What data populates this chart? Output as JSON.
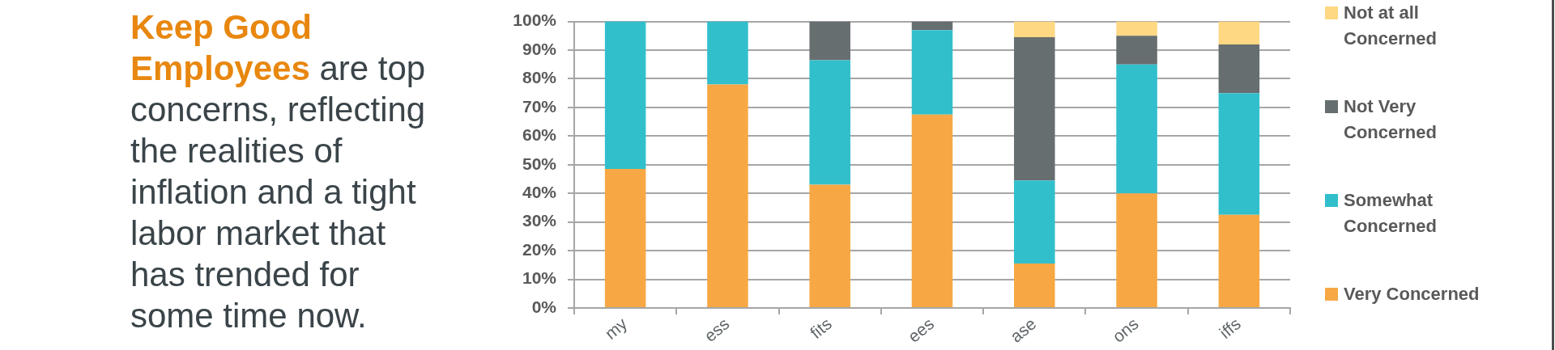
{
  "chart_data": {
    "type": "bar",
    "stacked": true,
    "categories": [
      "my",
      "ess",
      "fits",
      "ees",
      "ase",
      "ons",
      "iffs"
    ],
    "series": [
      {
        "name": "Very Concerned",
        "color": "#f7a844",
        "values": [
          48.5,
          78,
          43,
          67.5,
          15.5,
          40,
          32.5
        ]
      },
      {
        "name": "Somewhat Concerned",
        "color": "#31bfcc",
        "values": [
          51.5,
          22,
          43.5,
          29.5,
          29,
          45,
          42.5
        ]
      },
      {
        "name": "Not Very Concerned",
        "color": "#676e6f",
        "values": [
          0,
          0,
          13.5,
          3,
          50,
          10,
          17
        ]
      },
      {
        "name": "Not at all Concerned",
        "color": "#fed882",
        "values": [
          0,
          0,
          0,
          0,
          5.5,
          5,
          8
        ]
      }
    ],
    "ylim": [
      0,
      100
    ],
    "yticks": [
      {
        "value": 0,
        "label": "0%"
      },
      {
        "value": 10,
        "label": "10%"
      },
      {
        "value": 20,
        "label": "20%"
      },
      {
        "value": 30,
        "label": "30%"
      },
      {
        "value": 40,
        "label": "40%"
      },
      {
        "value": 50,
        "label": "50%"
      },
      {
        "value": 60,
        "label": "60%"
      },
      {
        "value": 70,
        "label": "70%"
      },
      {
        "value": 80,
        "label": "80%"
      },
      {
        "value": 90,
        "label": "90%"
      },
      {
        "value": 100,
        "label": "100%"
      }
    ],
    "grid": "y",
    "legend": "right",
    "annotations": [
      "Keep Good Employees",
      "are top",
      "concerns, reflecting the realities of inflation and a tight labor market that has trended for some time now."
    ]
  }
}
